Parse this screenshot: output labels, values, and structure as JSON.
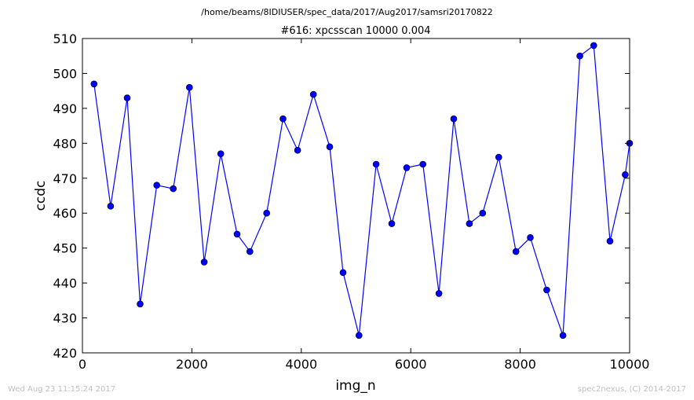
{
  "header": {
    "supertitle": "/home/beams/8IDIUSER/spec_data/2017/Aug2017/samsri20170822",
    "title": "#616: xpcsscan 10000 0.004"
  },
  "footer": {
    "timestamp": "Wed Aug 23 11:15:24 2017",
    "credit": "spec2nexus, (C) 2014-2017"
  },
  "colors": {
    "line": "#0000ff",
    "marker_fill": "#0000ff",
    "marker_edge": "#000000",
    "axes": "#000000"
  },
  "chart_data": {
    "type": "line",
    "xlabel": "img_n",
    "ylabel": "ccdc",
    "xlim": [
      0,
      10000
    ],
    "ylim": [
      420,
      510
    ],
    "xticks": [
      "0",
      "2000",
      "4000",
      "6000",
      "8000",
      "10000"
    ],
    "yticks": [
      "420",
      "430",
      "440",
      "450",
      "460",
      "470",
      "480",
      "490",
      "500",
      "510"
    ],
    "grid": false,
    "legend": "none",
    "series": [
      {
        "x": [
          213,
          515,
          818,
          1055,
          1358,
          1660,
          1956,
          2225,
          2528,
          2826,
          3060,
          3368,
          3665,
          3933,
          4221,
          4519,
          4763,
          5055,
          5368,
          5653,
          5925,
          6223,
          6515,
          6786,
          7072,
          7314,
          7608,
          7922,
          8185,
          8485,
          8782,
          9090,
          9344,
          9642,
          9920,
          10000
        ],
        "y": [
          497,
          462,
          493,
          434,
          468,
          467,
          496,
          446,
          477,
          454,
          449,
          460,
          487,
          478,
          494,
          479,
          443,
          425,
          474,
          457,
          473,
          474,
          437,
          487,
          457,
          460,
          476,
          449,
          453,
          438,
          425,
          505,
          508,
          452,
          471,
          480
        ]
      }
    ]
  }
}
